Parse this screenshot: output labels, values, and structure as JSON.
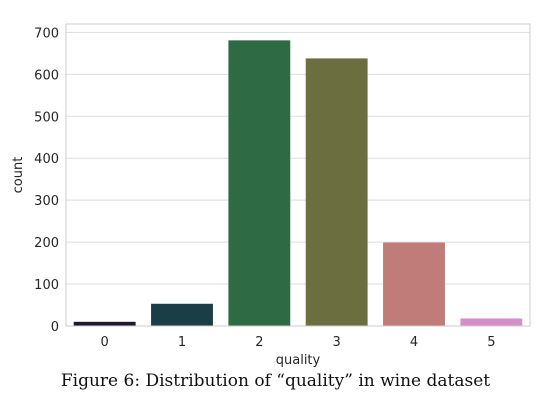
{
  "figure": {
    "caption": "Figure 6: Distribution of “quality” in wine dataset"
  },
  "chart_data": {
    "type": "bar",
    "categories": [
      "0",
      "1",
      "2",
      "3",
      "4",
      "5"
    ],
    "values": [
      10,
      53,
      681,
      638,
      199,
      18
    ],
    "bar_colors": [
      "#1f1830",
      "#1b3d45",
      "#2e6b45",
      "#6b6f40",
      "#bf7c78",
      "#d48fc7"
    ],
    "xlabel": "quality",
    "ylabel": "count",
    "ylim": [
      0,
      720
    ],
    "yticks": [
      0,
      100,
      200,
      300,
      400,
      500,
      600,
      700
    ],
    "grid": "horizontal",
    "legend": "none"
  }
}
